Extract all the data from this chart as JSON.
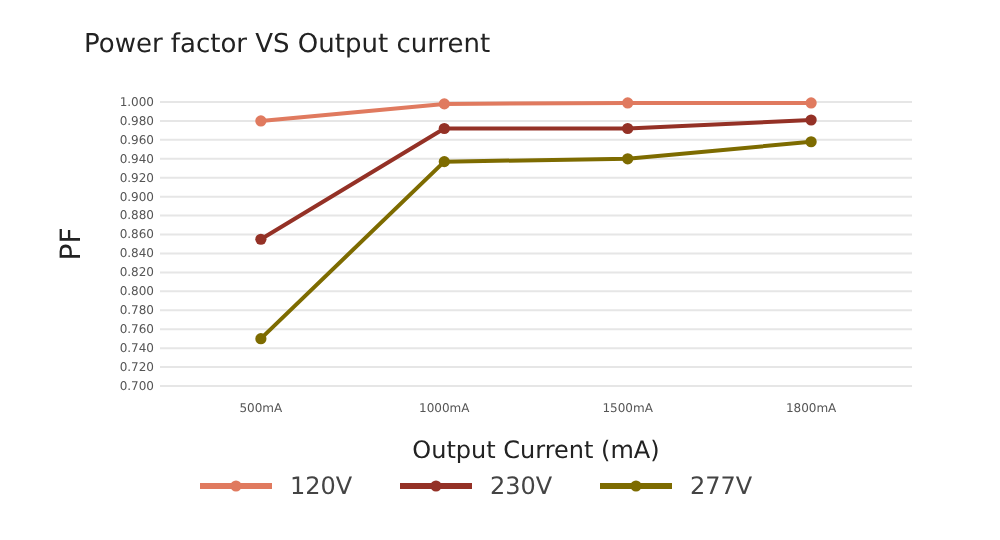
{
  "chart_data": {
    "type": "line",
    "title": "Power factor VS Output current",
    "xlabel": "Output Current (mA)",
    "ylabel": "PF",
    "categories": [
      "500mA",
      "1000mA",
      "1500mA",
      "1800mA"
    ],
    "series": [
      {
        "name": "120V",
        "color": "#e07a5f",
        "values": [
          0.98,
          0.998,
          0.999,
          0.999
        ]
      },
      {
        "name": "230V",
        "color": "#943126",
        "values": [
          0.855,
          0.972,
          0.972,
          0.981
        ]
      },
      {
        "name": "277V",
        "color": "#7d6b00",
        "values": [
          0.75,
          0.937,
          0.94,
          0.958
        ]
      }
    ],
    "ylim": [
      0.7,
      1.0
    ],
    "yticks": [
      {
        "value": 0.7,
        "label": "0.700"
      },
      {
        "value": 0.72,
        "label": "0.720"
      },
      {
        "value": 0.74,
        "label": "0.740"
      },
      {
        "value": 0.76,
        "label": "0.760"
      },
      {
        "value": 0.78,
        "label": "0.780"
      },
      {
        "value": 0.8,
        "label": "0.800"
      },
      {
        "value": 0.82,
        "label": "0.820"
      },
      {
        "value": 0.84,
        "label": "0.840"
      },
      {
        "value": 0.86,
        "label": "0.860"
      },
      {
        "value": 0.88,
        "label": "0.880"
      },
      {
        "value": 0.9,
        "label": "0.900"
      },
      {
        "value": 0.92,
        "label": "0.920"
      },
      {
        "value": 0.94,
        "label": "0.940"
      },
      {
        "value": 0.96,
        "label": "0.960"
      },
      {
        "value": 0.98,
        "label": "0.980"
      },
      {
        "value": 1.0,
        "label": "1.000"
      }
    ],
    "grid": "y",
    "legend": "bottom",
    "marker": "circle",
    "line_style": "solid"
  }
}
